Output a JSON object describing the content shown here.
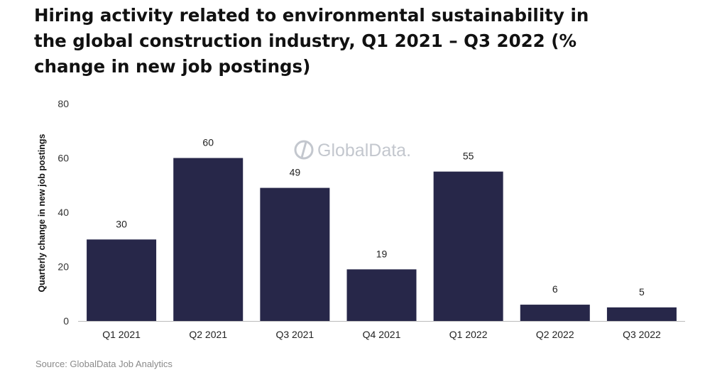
{
  "title": "Hiring activity related to environmental sustainability in the global construction industry, Q1 2021 – Q3 2022 (% change in new job postings)",
  "source": "Source: GlobalData Job Analytics",
  "watermark": "GlobalData.",
  "chart_data": {
    "type": "bar",
    "title": "Hiring activity related to environmental sustainability in the global construction industry, Q1 2021 – Q3 2022 (% change in new job postings)",
    "xlabel": "",
    "ylabel": "Quarterly change in new job postings",
    "categories": [
      "Q1 2021",
      "Q2 2021",
      "Q3 2021",
      "Q4 2021",
      "Q1 2022",
      "Q2 2022",
      "Q3 2022"
    ],
    "values": [
      30,
      60,
      49,
      19,
      55,
      6,
      5
    ],
    "ylim": [
      0,
      80
    ],
    "yticks": [
      0,
      20,
      40,
      60,
      80
    ],
    "grid": false,
    "legend": "none",
    "bar_color": "#272749"
  }
}
